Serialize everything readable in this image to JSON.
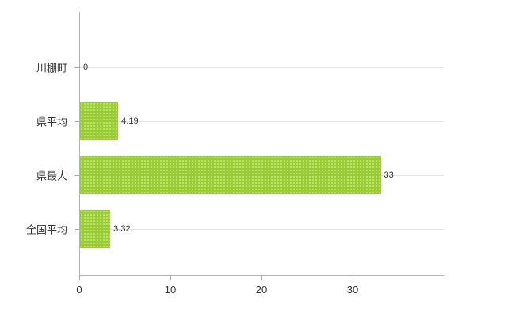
{
  "chart_data": {
    "type": "bar",
    "orientation": "horizontal",
    "title": "",
    "xlabel": "",
    "ylabel": "",
    "categories": [
      "川棚町",
      "県平均",
      "県最大",
      "全国平均"
    ],
    "values": [
      0,
      4.19,
      33,
      3.32
    ],
    "value_labels": [
      "0",
      "4.19",
      "33",
      "3.32"
    ],
    "xlim": [
      0,
      40
    ],
    "x_ticks": [
      0,
      10,
      20,
      30
    ],
    "x_tick_labels": [
      "0",
      "10",
      "20",
      "30"
    ],
    "grid": true,
    "legend": "none",
    "bar_color": "#9ACD32",
    "axis_color": "#b3b3b3",
    "gridline_color": "#e4e4e4",
    "text_color": "#333333",
    "background_color": "#ffffff"
  }
}
